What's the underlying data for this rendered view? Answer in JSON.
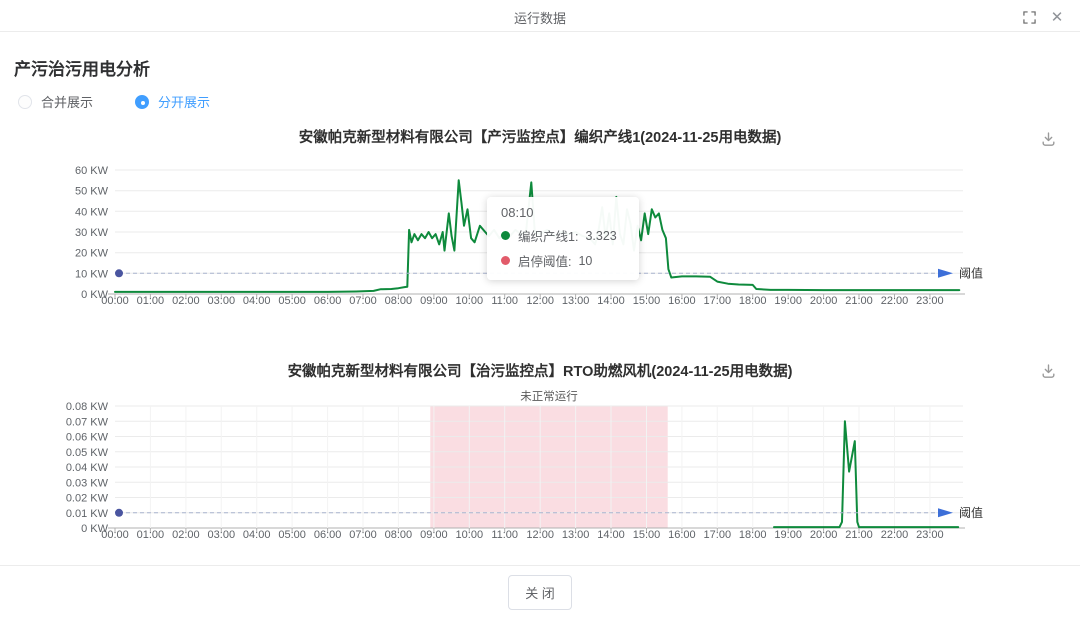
{
  "modal": {
    "title": "运行数据"
  },
  "header": {
    "title": "产污治污用电分析"
  },
  "display_options": {
    "merged": "合并展示",
    "separate": "分开展示"
  },
  "tooltip": {
    "time": "08:10",
    "rows": [
      {
        "label": "编织产线1:",
        "value": "3.323",
        "color": "#0e8a3c"
      },
      {
        "label": "启停阈值:",
        "value": "10",
        "color": "#e25b6a"
      }
    ]
  },
  "footer": {
    "close_label": "关 闭"
  },
  "chart_data": [
    {
      "type": "line",
      "title": "安徽帕克新型材料有限公司【产污监控点】编织产线1(2024-11-25用电数据)",
      "ylabel": "KW",
      "ylim": [
        0,
        60
      ],
      "ytick_labels": [
        "0 KW",
        "10 KW",
        "20 KW",
        "30 KW",
        "40 KW",
        "50 KW",
        "60 KW"
      ],
      "xtick_labels": [
        "00:00",
        "01:00",
        "02:00",
        "03:00",
        "04:00",
        "05:00",
        "06:00",
        "07:00",
        "08:00",
        "09:00",
        "10:00",
        "11:00",
        "12:00",
        "13:00",
        "14:00",
        "15:00",
        "16:00",
        "17:00",
        "18:00",
        "19:00",
        "20:00",
        "21:00",
        "22:00",
        "23:00"
      ],
      "threshold": {
        "value": 10,
        "label": "阈值",
        "name": "启停阈值",
        "line_color": "#a9b4cf",
        "dot_color": "#4a55a0",
        "arrow_color": "#3d6fd8"
      },
      "series": [
        {
          "name": "编织产线1",
          "color": "#0e8a3c",
          "points": [
            [
              0,
              1
            ],
            [
              1,
              1
            ],
            [
              2,
              1
            ],
            [
              3,
              1
            ],
            [
              4,
              1
            ],
            [
              5,
              1
            ],
            [
              6,
              1
            ],
            [
              6.8,
              1.2
            ],
            [
              7.3,
              1.5
            ],
            [
              7.5,
              2.3
            ],
            [
              7.8,
              2.4
            ],
            [
              8.0,
              2.8
            ],
            [
              8.17,
              3.323
            ],
            [
              8.25,
              3.5
            ],
            [
              8.3,
              31
            ],
            [
              8.37,
              25
            ],
            [
              8.45,
              29
            ],
            [
              8.55,
              26
            ],
            [
              8.65,
              29
            ],
            [
              8.75,
              27
            ],
            [
              8.85,
              30
            ],
            [
              8.95,
              27
            ],
            [
              9.05,
              29
            ],
            [
              9.15,
              24
            ],
            [
              9.25,
              30
            ],
            [
              9.3,
              21
            ],
            [
              9.42,
              39
            ],
            [
              9.5,
              28
            ],
            [
              9.58,
              21
            ],
            [
              9.7,
              55
            ],
            [
              9.78,
              44
            ],
            [
              9.85,
              33
            ],
            [
              9.95,
              41
            ],
            [
              10.05,
              27
            ],
            [
              10.15,
              25
            ],
            [
              10.3,
              33
            ],
            [
              10.45,
              30
            ],
            [
              10.55,
              28
            ],
            [
              10.7,
              31
            ],
            [
              10.85,
              27
            ],
            [
              11.0,
              30
            ],
            [
              11.15,
              28
            ],
            [
              11.3,
              31
            ],
            [
              11.45,
              29
            ],
            [
              11.6,
              30
            ],
            [
              11.75,
              54
            ],
            [
              11.85,
              30
            ],
            [
              12.0,
              29
            ],
            [
              12.2,
              31
            ],
            [
              12.4,
              28
            ],
            [
              12.6,
              30
            ],
            [
              12.8,
              29
            ],
            [
              13.0,
              30
            ],
            [
              13.2,
              28
            ],
            [
              13.4,
              27
            ],
            [
              13.55,
              24
            ],
            [
              13.65,
              31
            ],
            [
              13.75,
              42
            ],
            [
              13.85,
              27
            ],
            [
              13.95,
              39
            ],
            [
              14.05,
              24
            ],
            [
              14.15,
              47
            ],
            [
              14.25,
              29
            ],
            [
              14.35,
              24
            ],
            [
              14.45,
              41
            ],
            [
              14.55,
              34
            ],
            [
              14.65,
              21
            ],
            [
              14.75,
              33
            ],
            [
              14.85,
              26
            ],
            [
              14.95,
              39
            ],
            [
              15.05,
              29
            ],
            [
              15.15,
              41
            ],
            [
              15.25,
              37
            ],
            [
              15.35,
              39
            ],
            [
              15.45,
              31
            ],
            [
              15.55,
              27
            ],
            [
              15.62,
              12
            ],
            [
              15.7,
              8
            ],
            [
              16.0,
              8.5
            ],
            [
              16.4,
              8.5
            ],
            [
              16.8,
              8.3
            ],
            [
              17.0,
              6
            ],
            [
              17.3,
              5
            ],
            [
              17.6,
              4.6
            ],
            [
              18.0,
              4.4
            ],
            [
              18.1,
              2.4
            ],
            [
              18.5,
              2
            ],
            [
              19.0,
              2
            ],
            [
              20.0,
              1.9
            ],
            [
              21.0,
              1.9
            ],
            [
              22.0,
              1.9
            ],
            [
              23.0,
              1.9
            ],
            [
              23.83,
              1.9
            ]
          ]
        }
      ]
    },
    {
      "type": "line",
      "title": "安徽帕克新型材料有限公司【治污监控点】RTO助燃风机(2024-11-25用电数据)",
      "ylabel": "KW",
      "ylim": [
        0,
        0.08
      ],
      "ytick_labels": [
        "0 KW",
        "0.01 KW",
        "0.02 KW",
        "0.03 KW",
        "0.04 KW",
        "0.05 KW",
        "0.06 KW",
        "0.07 KW",
        "0.08 KW"
      ],
      "xtick_labels": [
        "00:00",
        "01:00",
        "02:00",
        "03:00",
        "04:00",
        "05:00",
        "06:00",
        "07:00",
        "08:00",
        "09:00",
        "10:00",
        "11:00",
        "12:00",
        "13:00",
        "14:00",
        "15:00",
        "16:00",
        "17:00",
        "18:00",
        "19:00",
        "20:00",
        "21:00",
        "22:00",
        "23:00"
      ],
      "threshold": {
        "value": 0.01,
        "label": "阈值",
        "line_color": "#a9b4cf",
        "dot_color": "#4a55a0",
        "arrow_color": "#3d6fd8"
      },
      "abnormal_band": {
        "x0": 8.9,
        "x1": 15.6,
        "label": "未正常运行",
        "color": "#fadde2"
      },
      "series": [
        {
          "color": "#0e8a3c",
          "points": [
            [
              18.6,
              0.0006
            ],
            [
              19.0,
              0.0006
            ],
            [
              19.5,
              0.0006
            ],
            [
              20.0,
              0.0006
            ],
            [
              20.45,
              0.0006
            ],
            [
              20.52,
              0.004
            ],
            [
              20.6,
              0.07
            ],
            [
              20.72,
              0.037
            ],
            [
              20.88,
              0.057
            ],
            [
              20.95,
              0.004
            ],
            [
              21.0,
              0.0006
            ],
            [
              21.5,
              0.0006
            ],
            [
              22.0,
              0.0006
            ],
            [
              23.0,
              0.0006
            ],
            [
              23.8,
              0.0006
            ]
          ]
        }
      ]
    }
  ]
}
